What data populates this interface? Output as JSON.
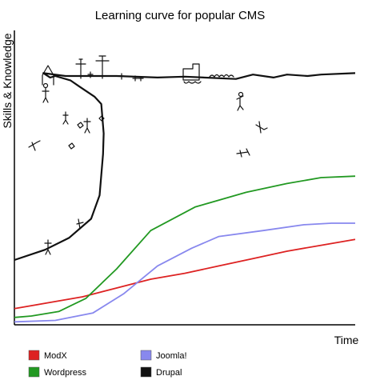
{
  "chart_data": {
    "type": "line",
    "title": "Learning curve for popular CMS",
    "xlabel": "Time",
    "ylabel": "Skills & Knowledge",
    "xlim": [
      0,
      10
    ],
    "ylim": [
      0,
      10
    ],
    "grid": false,
    "legend_position": "bottom",
    "series": [
      {
        "name": "ModX",
        "color": "#dd2222",
        "x": [
          0,
          1,
          2,
          3,
          4,
          5,
          6,
          7,
          8,
          9,
          10
        ],
        "y": [
          0.55,
          0.75,
          0.95,
          1.25,
          1.55,
          1.75,
          2.0,
          2.25,
          2.5,
          2.7,
          2.9
        ]
      },
      {
        "name": "Wordpress",
        "color": "#229922",
        "x": [
          0,
          0.5,
          1.3,
          2.1,
          3.0,
          4.0,
          5.3,
          6.8,
          8.0,
          9.0,
          10
        ],
        "y": [
          0.25,
          0.3,
          0.45,
          0.9,
          1.9,
          3.2,
          4.0,
          4.5,
          4.8,
          5.0,
          5.05
        ]
      },
      {
        "name": "Joomla!",
        "color": "#8888ee",
        "x": [
          0,
          1.2,
          2.3,
          3.2,
          4.2,
          5.2,
          6.0,
          7.3,
          8.5,
          9.3,
          10
        ],
        "y": [
          0.1,
          0.15,
          0.4,
          1.05,
          2.0,
          2.6,
          3.0,
          3.2,
          3.4,
          3.45,
          3.45
        ]
      },
      {
        "name": "Drupal",
        "color": "#111111",
        "x": [
          0,
          0.9,
          1.6,
          2.25,
          2.5,
          2.6,
          2.62,
          2.55,
          2.35,
          1.9,
          1.65,
          1.2,
          1.05,
          0.85,
          1.5,
          3.0,
          4.2,
          5.0,
          6.5,
          7.0,
          7.6,
          8.0,
          8.6,
          9.0,
          10
        ],
        "y": [
          2.2,
          2.55,
          2.95,
          3.6,
          4.4,
          5.8,
          6.5,
          7.5,
          7.75,
          8.1,
          8.3,
          8.45,
          8.4,
          8.55,
          8.45,
          8.45,
          8.4,
          8.43,
          8.35,
          8.5,
          8.4,
          8.5,
          8.45,
          8.5,
          8.55
        ]
      }
    ]
  }
}
